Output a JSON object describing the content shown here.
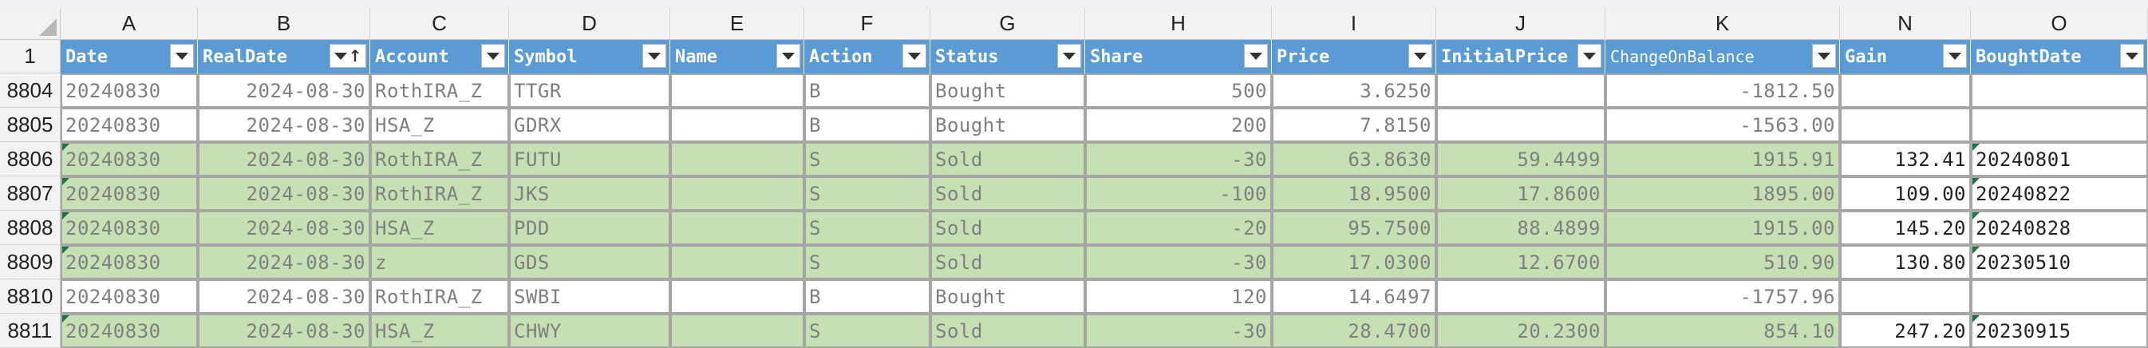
{
  "columns": [
    {
      "letter": "A",
      "field": "Date"
    },
    {
      "letter": "B",
      "field": "RealDate"
    },
    {
      "letter": "C",
      "field": "Account"
    },
    {
      "letter": "D",
      "field": "Symbol"
    },
    {
      "letter": "E",
      "field": "Name"
    },
    {
      "letter": "F",
      "field": "Action"
    },
    {
      "letter": "G",
      "field": "Status"
    },
    {
      "letter": "H",
      "field": "Share"
    },
    {
      "letter": "I",
      "field": "Price"
    },
    {
      "letter": "J",
      "field": "InitialPrice"
    },
    {
      "letter": "K",
      "field": "ChangeOnBalance"
    },
    {
      "letter": "N",
      "field": "Gain"
    },
    {
      "letter": "O",
      "field": "BoughtDate"
    }
  ],
  "header_row_number": "1",
  "rows": [
    {
      "num": "8804",
      "fill": "white",
      "cells": [
        "20240830",
        "2024-08-30",
        "RothIRA_Z",
        "TTGR",
        "",
        "B",
        "Bought",
        "500",
        "3.6250",
        "",
        "-1812.50",
        "",
        ""
      ]
    },
    {
      "num": "8805",
      "fill": "white",
      "cells": [
        "20240830",
        "2024-08-30",
        "HSA_Z",
        "GDRX",
        "",
        "B",
        "Bought",
        "200",
        "7.8150",
        "",
        "-1563.00",
        "",
        ""
      ]
    },
    {
      "num": "8806",
      "fill": "green",
      "cells": [
        "20240830",
        "2024-08-30",
        "RothIRA_Z",
        "FUTU",
        "",
        "S",
        "Sold",
        "-30",
        "63.8630",
        "59.4499",
        "1915.91",
        "132.41",
        "20240801"
      ]
    },
    {
      "num": "8807",
      "fill": "green",
      "cells": [
        "20240830",
        "2024-08-30",
        "RothIRA_Z",
        "JKS",
        "",
        "S",
        "Sold",
        "-100",
        "18.9500",
        "17.8600",
        "1895.00",
        "109.00",
        "20240822"
      ]
    },
    {
      "num": "8808",
      "fill": "green",
      "cells": [
        "20240830",
        "2024-08-30",
        "HSA_Z",
        "PDD",
        "",
        "S",
        "Sold",
        "-20",
        "95.7500",
        "88.4899",
        "1915.00",
        "145.20",
        "20240828"
      ]
    },
    {
      "num": "8809",
      "fill": "green",
      "cells": [
        "20240830",
        "2024-08-30",
        "z",
        "GDS",
        "",
        "S",
        "Sold",
        "-30",
        "17.0300",
        "12.6700",
        "510.90",
        "130.80",
        "20230510"
      ]
    },
    {
      "num": "8810",
      "fill": "white",
      "cells": [
        "20240830",
        "2024-08-30",
        "RothIRA_Z",
        "SWBI",
        "",
        "B",
        "Bought",
        "120",
        "14.6497",
        "",
        "-1757.96",
        "",
        ""
      ]
    },
    {
      "num": "8811",
      "fill": "green",
      "cells": [
        "20240830",
        "2024-08-30",
        "HSA_Z",
        "CHWY",
        "",
        "S",
        "Sold",
        "-30",
        "28.4700",
        "20.2300",
        "854.10",
        "247.20",
        "20230915"
      ]
    }
  ],
  "colors": {
    "header_blue": "#5b9bd5",
    "sold_green": "#c6e0b4"
  },
  "icons": {
    "filter": "filter-dropdown-icon",
    "sort": "sort-ascending-icon"
  }
}
